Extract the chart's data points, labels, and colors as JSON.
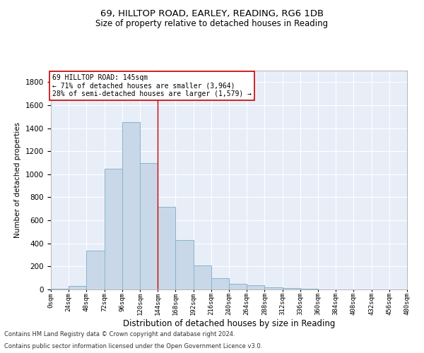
{
  "title": "69, HILLTOP ROAD, EARLEY, READING, RG6 1DB",
  "subtitle": "Size of property relative to detached houses in Reading",
  "xlabel": "Distribution of detached houses by size in Reading",
  "ylabel": "Number of detached properties",
  "bar_color": "#c8d8e8",
  "bar_edgecolor": "#8ab4cc",
  "background_color": "#e8eef8",
  "vline_x": 144,
  "vline_color": "#cc0000",
  "annotation_title": "69 HILLTOP ROAD: 145sqm",
  "annotation_line1": "← 71% of detached houses are smaller (3,964)",
  "annotation_line2": "28% of semi-detached houses are larger (1,579) →",
  "footnote1": "Contains HM Land Registry data © Crown copyright and database right 2024.",
  "footnote2": "Contains public sector information licensed under the Open Government Licence v3.0.",
  "bin_edges": [
    0,
    24,
    48,
    72,
    96,
    120,
    144,
    168,
    192,
    216,
    240,
    264,
    288,
    312,
    336,
    360,
    384,
    408,
    432,
    456,
    480
  ],
  "bar_heights": [
    5,
    30,
    340,
    1050,
    1450,
    1100,
    720,
    430,
    210,
    100,
    50,
    35,
    20,
    15,
    5,
    0,
    0,
    0,
    0,
    0
  ],
  "ylim": [
    0,
    1900
  ],
  "yticks": [
    0,
    200,
    400,
    600,
    800,
    1000,
    1200,
    1400,
    1600,
    1800
  ]
}
